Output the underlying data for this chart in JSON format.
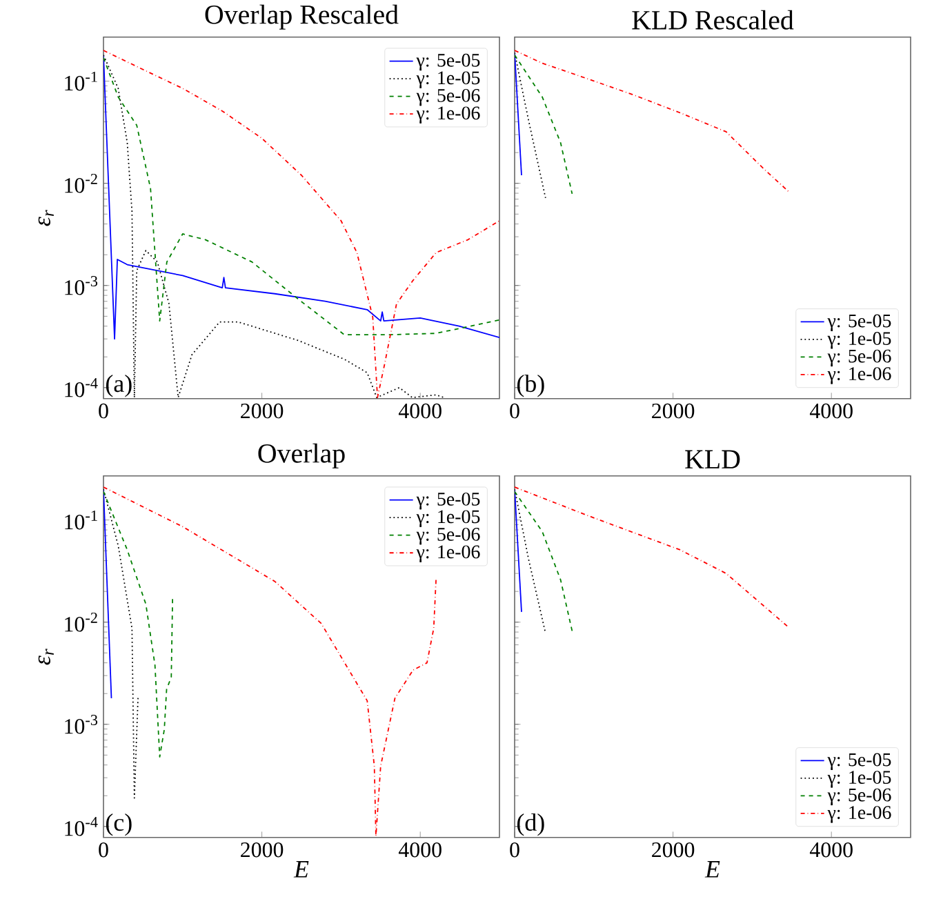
{
  "chart_data": [
    {
      "type": "line",
      "title": "Overlap Rescaled",
      "ylabel": "ε$_{r}$",
      "log": "y",
      "xlim": [
        0,
        5000
      ],
      "xticks": [
        0,
        2000,
        4000
      ],
      "ylim": [
        7.8e-05,
        0.27
      ],
      "yticks": [
        {
          "value": 0.0001,
          "label": "10$^{-4}$"
        },
        {
          "value": 0.001,
          "label": "10$^{-3}$"
        },
        {
          "value": 0.01,
          "label": "10$^{-2}$"
        },
        {
          "value": 0.1,
          "label": "10$^{-1}$"
        }
      ],
      "legend": "top right",
      "annotations": [
        "(a)"
      ],
      "series": [
        {
          "name": "γ: 5e-05",
          "color": "#0000ff",
          "line_style": "solid",
          "x": [
            0,
            140,
            175,
            300,
            1000,
            1500,
            1520,
            1540,
            2165,
            2800,
            3330,
            3500,
            3520,
            3540,
            4000,
            4490,
            5000
          ],
          "values": [
            0.18,
            0.0003,
            0.0018,
            0.0016,
            0.00125,
            0.00095,
            0.0012,
            0.00095,
            0.00083,
            0.0007,
            0.00058,
            0.00045,
            0.00055,
            0.00045,
            0.00048,
            0.0004,
            0.00031
          ]
        },
        {
          "name": "γ: 1e-05",
          "color": "#000000",
          "line_style": "dotted",
          "x": [
            0,
            186,
            300,
            360,
            390,
            420,
            535,
            680,
            826,
            943,
            1117,
            1467,
            1700,
            2456,
            3040,
            3330,
            3450,
            3736,
            3900,
            4200,
            4300
          ],
          "values": [
            0.18,
            0.085,
            0.025,
            0.0053,
            8e-05,
            0.0014,
            0.0022,
            0.0017,
            0.00067,
            8e-05,
            0.00021,
            0.00044,
            0.00044,
            0.00029,
            0.00019,
            0.00014,
            8e-05,
            0.0001,
            8e-05,
            8.5e-05,
            8e-05
          ]
        },
        {
          "name": "γ: 5e-06",
          "color": "#008000",
          "line_style": "dashed",
          "x": [
            0,
            186,
            420,
            594,
            710,
            800,
            1000,
            1290,
            1875,
            2455,
            3040,
            3620,
            4200,
            5000
          ],
          "values": [
            0.17,
            0.07,
            0.037,
            0.0089,
            0.00045,
            0.0017,
            0.0032,
            0.0028,
            0.0017,
            0.00074,
            0.00033,
            0.00033,
            0.00034,
            0.00046
          ]
        },
        {
          "name": "γ: 1e-06",
          "color": "#ff0000",
          "line_style": "dashdot",
          "x": [
            0,
            500,
            1000,
            1500,
            2000,
            2500,
            3000,
            3200,
            3400,
            3460,
            3550,
            3700,
            3900,
            4200,
            4600,
            5000
          ],
          "values": [
            0.2,
            0.13,
            0.085,
            0.051,
            0.0276,
            0.012,
            0.0043,
            0.0021,
            0.00049,
            8e-05,
            0.00017,
            0.00066,
            0.0011,
            0.0021,
            0.0028,
            0.0043
          ]
        }
      ]
    },
    {
      "type": "line",
      "title": "KLD Rescaled",
      "log": "y",
      "xlim": [
        0,
        5000
      ],
      "xticks": [
        0,
        2000,
        4000
      ],
      "ylim": [
        7.8e-05,
        0.27
      ],
      "yticks": [
        {
          "value": 0.0001,
          "label": null
        },
        {
          "value": 0.001,
          "label": null
        },
        {
          "value": 0.01,
          "label": null
        },
        {
          "value": 0.1,
          "label": null
        }
      ],
      "tick_labels": "x",
      "legend": "bottom right",
      "annotations": [
        "(b)"
      ],
      "series": [
        {
          "name": "γ: 5e-05",
          "color": "#0000ff",
          "line_style": "solid",
          "x": [
            0,
            87
          ],
          "values": [
            0.19,
            0.012
          ]
        },
        {
          "name": "γ: 1e-05",
          "color": "#000000",
          "line_style": "dotted",
          "x": [
            0,
            174,
            390
          ],
          "values": [
            0.19,
            0.042,
            0.0072
          ]
        },
        {
          "name": "γ: 5e-06",
          "color": "#008000",
          "line_style": "dashed",
          "x": [
            0,
            349,
            580,
            726
          ],
          "values": [
            0.18,
            0.07,
            0.025,
            0.0079
          ]
        },
        {
          "name": "γ: 1e-06",
          "color": "#ff0000",
          "line_style": "dashdot",
          "x": [
            0,
            349,
            930,
            1510,
            2090,
            2670,
            3140,
            3460
          ],
          "values": [
            0.2,
            0.15,
            0.105,
            0.073,
            0.049,
            0.032,
            0.014,
            0.0083
          ]
        }
      ]
    },
    {
      "type": "line",
      "title": "Overlap",
      "xlabel": "E",
      "ylabel": "ε$_{r}$",
      "log": "y",
      "xlim": [
        0,
        5000
      ],
      "xticks": [
        0,
        2000,
        4000
      ],
      "ylim": [
        7.8e-05,
        0.27
      ],
      "yticks": [
        {
          "value": 0.0001,
          "label": "10$^{-4}$"
        },
        {
          "value": 0.001,
          "label": "10$^{-3}$"
        },
        {
          "value": 0.01,
          "label": "10$^{-2}$"
        },
        {
          "value": 0.1,
          "label": "10$^{-1}$"
        }
      ],
      "legend": "top right",
      "annotations": [
        "(c)"
      ],
      "series": [
        {
          "name": "γ: 5e-05",
          "color": "#0000ff",
          "line_style": "solid",
          "x": [
            0,
            100
          ],
          "values": [
            0.2,
            0.0018
          ]
        },
        {
          "name": "γ: 1e-05",
          "color": "#000000",
          "line_style": "dotted",
          "x": [
            0,
            186,
            360,
            390,
            437
          ],
          "values": [
            0.2,
            0.056,
            0.0087,
            0.00019,
            0.0019
          ]
        },
        {
          "name": "γ: 5e-06",
          "color": "#008000",
          "line_style": "dashed",
          "x": [
            0,
            300,
            535,
            650,
            710,
            768,
            797,
            856,
            873
          ],
          "values": [
            0.19,
            0.051,
            0.015,
            0.0038,
            0.00048,
            0.00089,
            0.0022,
            0.0029,
            0.018
          ]
        },
        {
          "name": "γ: 1e-06",
          "color": "#ff0000",
          "line_style": "dashdot",
          "x": [
            0,
            1000,
            2165,
            2750,
            3330,
            3420,
            3440,
            3500,
            3680,
            3910,
            4085,
            4170,
            4200
          ],
          "values": [
            0.21,
            0.086,
            0.025,
            0.0097,
            0.0017,
            0.00039,
            8e-05,
            0.00039,
            0.0018,
            0.0034,
            0.004,
            0.0087,
            0.027
          ]
        }
      ]
    },
    {
      "type": "line",
      "title": "KLD",
      "xlabel": "E",
      "log": "y",
      "xlim": [
        0,
        5000
      ],
      "xticks": [
        0,
        2000,
        4000
      ],
      "ylim": [
        7.8e-05,
        0.27
      ],
      "yticks": [
        {
          "value": 0.0001,
          "label": null
        },
        {
          "value": 0.001,
          "label": null
        },
        {
          "value": 0.01,
          "label": null
        },
        {
          "value": 0.1,
          "label": null
        }
      ],
      "tick_labels": "x",
      "legend": "bottom right",
      "annotations": [
        "(d)"
      ],
      "series": [
        {
          "name": "γ: 5e-05",
          "color": "#0000ff",
          "line_style": "solid",
          "x": [
            0,
            87
          ],
          "values": [
            0.2,
            0.0126
          ]
        },
        {
          "name": "γ: 1e-05",
          "color": "#000000",
          "line_style": "dotted",
          "x": [
            0,
            174,
            390
          ],
          "values": [
            0.2,
            0.042,
            0.0078
          ]
        },
        {
          "name": "γ: 5e-06",
          "color": "#008000",
          "line_style": "dashed",
          "x": [
            0,
            349,
            580,
            726
          ],
          "values": [
            0.19,
            0.077,
            0.026,
            0.0082
          ]
        },
        {
          "name": "γ: 1e-06",
          "color": "#ff0000",
          "line_style": "dashdot",
          "x": [
            0,
            930,
            2090,
            2670,
            3460
          ],
          "values": [
            0.21,
            0.11,
            0.051,
            0.03,
            0.0089
          ]
        }
      ]
    }
  ]
}
